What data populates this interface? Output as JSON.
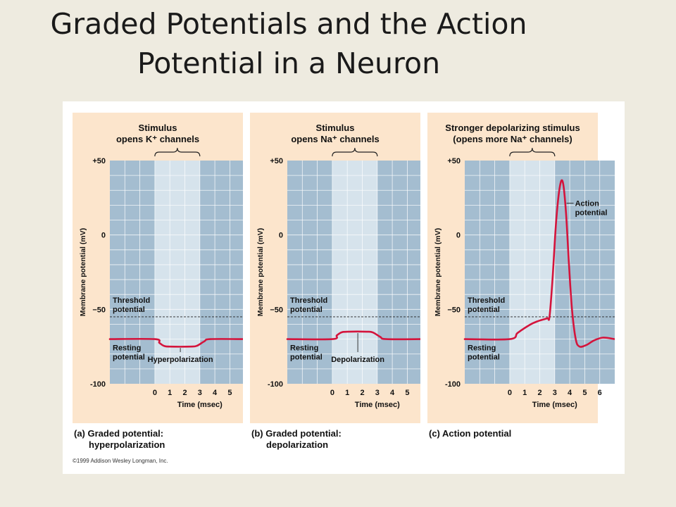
{
  "slide": {
    "title_line1": "Graded Potentials and the Action",
    "title_line2": "Potential in a Neuron"
  },
  "figure": {
    "copyright": "©1999 Addison Wesley Longman, Inc."
  },
  "colors": {
    "panel_background": "#fce5cc",
    "plot_dark": "#a4bdd0",
    "plot_light": "#d6e3ec",
    "trace": "#d4143c"
  },
  "chart_data": [
    {
      "type": "line",
      "panel_label": "(a) Graded potential:",
      "panel_label2": "hyperpolarization",
      "stimulus_label_line1": "Stimulus",
      "stimulus_label_line2": "opens K⁺ channels",
      "ylabel": "Membrane potential (mV)",
      "xlabel": "Time (msec)",
      "y_ticks": [
        "+50",
        "0",
        "−50",
        "-100"
      ],
      "y_tick_values": [
        50,
        0,
        -50,
        -100
      ],
      "x_ticks": [
        "0",
        "1",
        "2",
        "3",
        "4",
        "5"
      ],
      "x_tick_values": [
        0,
        1,
        2,
        3,
        4,
        5
      ],
      "xlim": [
        -3,
        6
      ],
      "ylim": [
        -100,
        50
      ],
      "stimulus_interval": [
        0,
        3
      ],
      "threshold": -55,
      "threshold_label": [
        "Threshold",
        "potential"
      ],
      "resting_label": [
        "Resting",
        "potential"
      ],
      "annotation": "Hyperpolarization",
      "annotation_at": [
        1.7,
        -75
      ],
      "x": [
        -3,
        0,
        0.3,
        0.6,
        1,
        2.4,
        2.8,
        3.3,
        3.7,
        6
      ],
      "y": [
        -70,
        -70,
        -72.5,
        -74.5,
        -75,
        -75,
        -74.5,
        -71.5,
        -70,
        -70
      ]
    },
    {
      "type": "line",
      "panel_label": "(b) Graded potential:",
      "panel_label2": "depolarization",
      "stimulus_label_line1": "Stimulus",
      "stimulus_label_line2": "opens Na⁺ channels",
      "ylabel": "Membrane potential (mV)",
      "xlabel": "Time (msec)",
      "y_ticks": [
        "+50",
        "0",
        "−50",
        "-100"
      ],
      "y_tick_values": [
        50,
        0,
        -50,
        -100
      ],
      "x_ticks": [
        "0",
        "1",
        "2",
        "3",
        "4",
        "5"
      ],
      "x_tick_values": [
        0,
        1,
        2,
        3,
        4,
        5
      ],
      "xlim": [
        -3,
        6
      ],
      "ylim": [
        -100,
        50
      ],
      "stimulus_interval": [
        0,
        3
      ],
      "threshold": -55,
      "threshold_label": [
        "Threshold",
        "potential"
      ],
      "resting_label": [
        "Resting",
        "potential"
      ],
      "annotation": "Depolarization",
      "annotation_at": [
        1.7,
        -65
      ],
      "x": [
        -3,
        0,
        0.3,
        0.6,
        1,
        2.3,
        2.7,
        3.2,
        3.6,
        6
      ],
      "y": [
        -70,
        -70,
        -67.5,
        -65.5,
        -65,
        -65,
        -65.5,
        -68.5,
        -70,
        -70
      ]
    },
    {
      "type": "line",
      "panel_label": "(c) Action potential",
      "panel_label2": "",
      "stimulus_label_line1": "Stronger depolarizing stimulus",
      "stimulus_label_line2": "(opens more Na⁺ channels)",
      "ylabel": "Membrane potential (mV)",
      "xlabel": "Time (msec)",
      "y_ticks": [
        "+50",
        "0",
        "−50",
        "-100"
      ],
      "y_tick_values": [
        50,
        0,
        -50,
        -100
      ],
      "x_ticks": [
        "0",
        "1",
        "2",
        "3",
        "4",
        "5",
        "6"
      ],
      "x_tick_values": [
        0,
        1,
        2,
        3,
        4,
        5,
        6
      ],
      "xlim": [
        -3,
        7
      ],
      "ylim": [
        -100,
        50
      ],
      "stimulus_interval": [
        0,
        3
      ],
      "threshold": -55,
      "threshold_label": [
        "Threshold",
        "potential"
      ],
      "resting_label": [
        "Resting",
        "potential"
      ],
      "annotation": "Action potential",
      "annotation_lines": [
        "Action",
        "potential"
      ],
      "annotation_at": [
        3.6,
        27
      ],
      "x": [
        -3,
        0,
        0.5,
        1,
        1.5,
        2,
        2.5,
        2.65,
        2.85,
        3.1,
        3.35,
        3.55,
        3.75,
        3.95,
        4.15,
        4.4,
        4.65,
        5.1,
        5.6,
        6.2,
        7
      ],
      "y": [
        -70,
        -70,
        -66,
        -62.5,
        -59.5,
        -57.5,
        -56,
        -55,
        -30,
        10,
        33,
        35,
        15,
        -20,
        -50,
        -70,
        -75,
        -74,
        -71,
        -69,
        -70
      ]
    }
  ]
}
